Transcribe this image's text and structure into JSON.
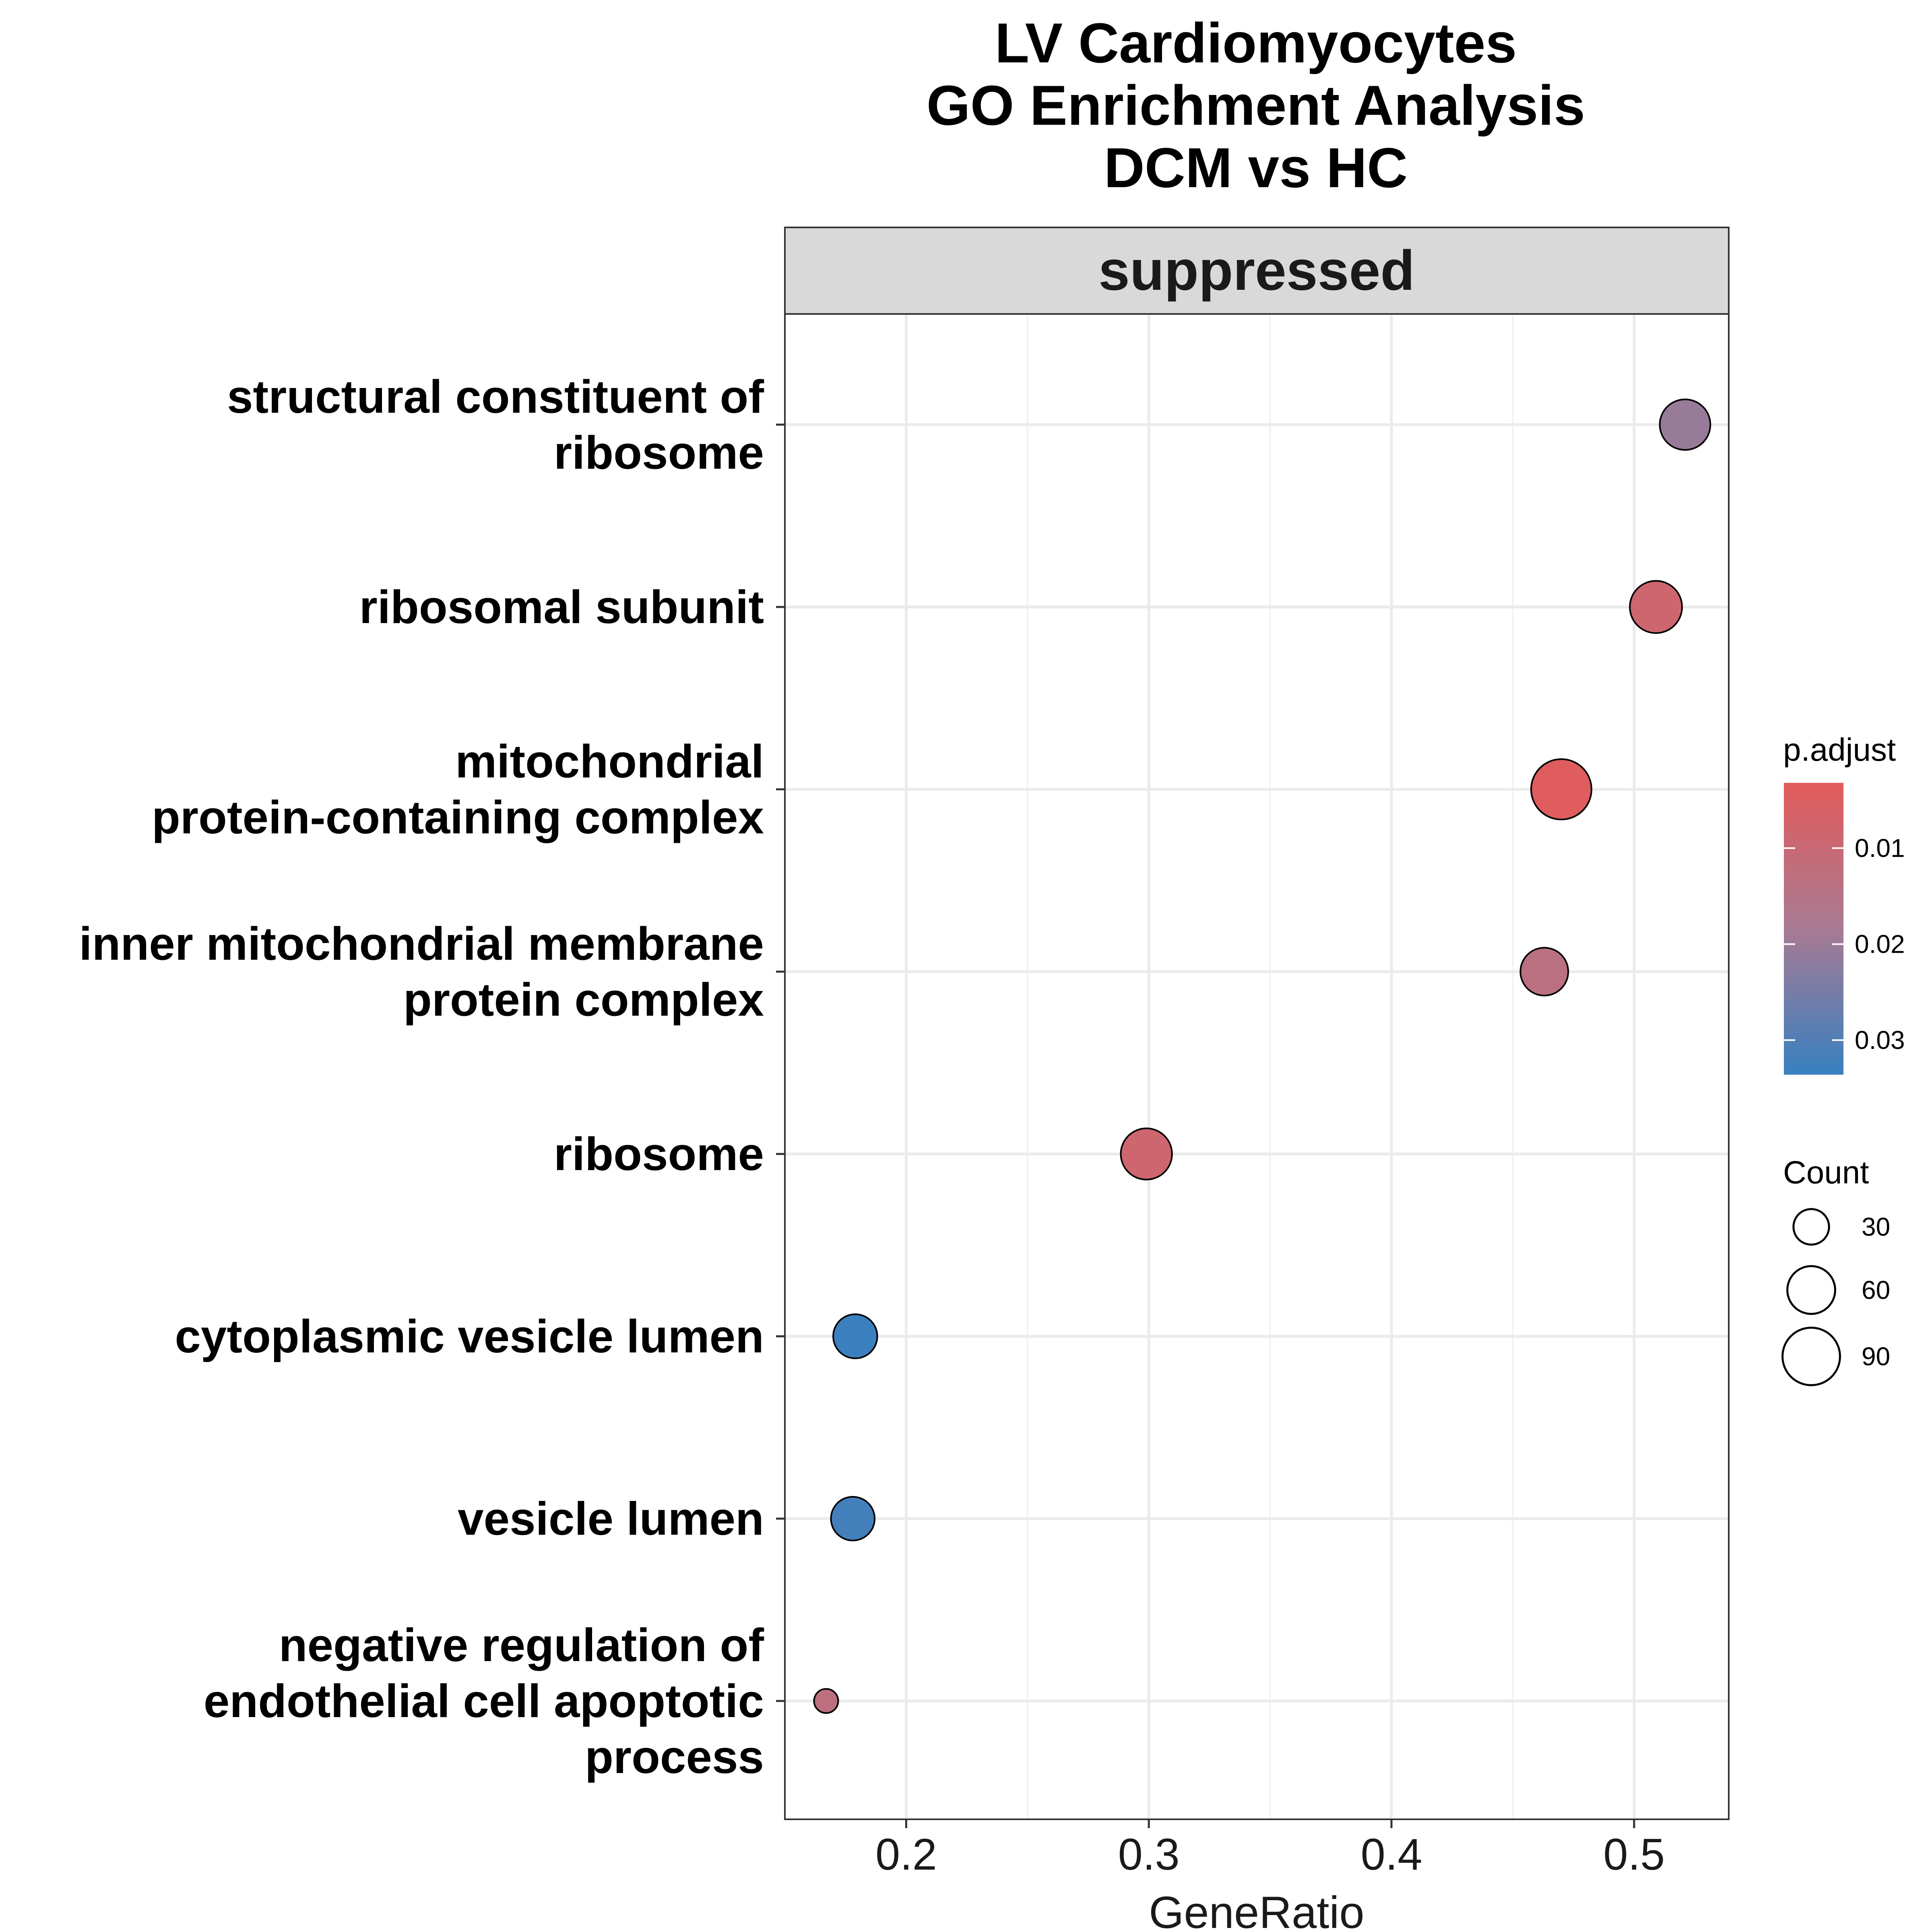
{
  "chart_data": {
    "type": "scatter",
    "title_lines": [
      "LV Cardiomyocytes",
      "GO Enrichment Analysis",
      "DCM vs HC"
    ],
    "facet": "suppressed",
    "xlabel": "GeneRatio",
    "ylabel": "",
    "xlim": [
      0.15,
      0.539
    ],
    "x_ticks": [
      0.2,
      0.3,
      0.4,
      0.5
    ],
    "x_tick_labels": [
      "0.2",
      "0.3",
      "0.4",
      "0.5"
    ],
    "grid": true,
    "color_scale": {
      "title": "p.adjust",
      "low_color": "#e25b5b",
      "mid_color": "#a87a93",
      "high_color": "#3780c0",
      "range": [
        0.0032,
        0.0336
      ],
      "ticks": [
        0.01,
        0.02,
        0.03
      ],
      "tick_labels": [
        "0.01",
        "0.02",
        "0.03"
      ]
    },
    "size_scale": {
      "title": "Count",
      "ticks": [
        30,
        60,
        90
      ],
      "tick_labels": [
        "30",
        "60",
        "90"
      ],
      "range": [
        10,
        100
      ]
    },
    "terms": [
      {
        "label_lines": [
          "structural constituent of",
          "ribosome"
        ],
        "x": 0.521,
        "count": 68,
        "p_adjust": 0.0205
      },
      {
        "label_lines": [
          "ribosomal subunit"
        ],
        "x": 0.509,
        "count": 73,
        "p_adjust": 0.0085
      },
      {
        "label_lines": [
          "mitochondrial",
          "protein-containing complex"
        ],
        "x": 0.47,
        "count": 100,
        "p_adjust": 0.004
      },
      {
        "label_lines": [
          "inner mitochondrial membrane",
          "protein complex"
        ],
        "x": 0.463,
        "count": 60,
        "p_adjust": 0.0135
      },
      {
        "label_lines": [
          "ribosome"
        ],
        "x": 0.299,
        "count": 70,
        "p_adjust": 0.0085
      },
      {
        "label_lines": [
          "cytoplasmic vesicle lumen"
        ],
        "x": 0.179,
        "count": 50,
        "p_adjust": 0.033
      },
      {
        "label_lines": [
          "vesicle lumen"
        ],
        "x": 0.178,
        "count": 49,
        "p_adjust": 0.032
      },
      {
        "label_lines": [
          "negative regulation of",
          "endothelial cell apoptotic",
          "process"
        ],
        "x": 0.167,
        "count": 10,
        "p_adjust": 0.013
      }
    ]
  }
}
